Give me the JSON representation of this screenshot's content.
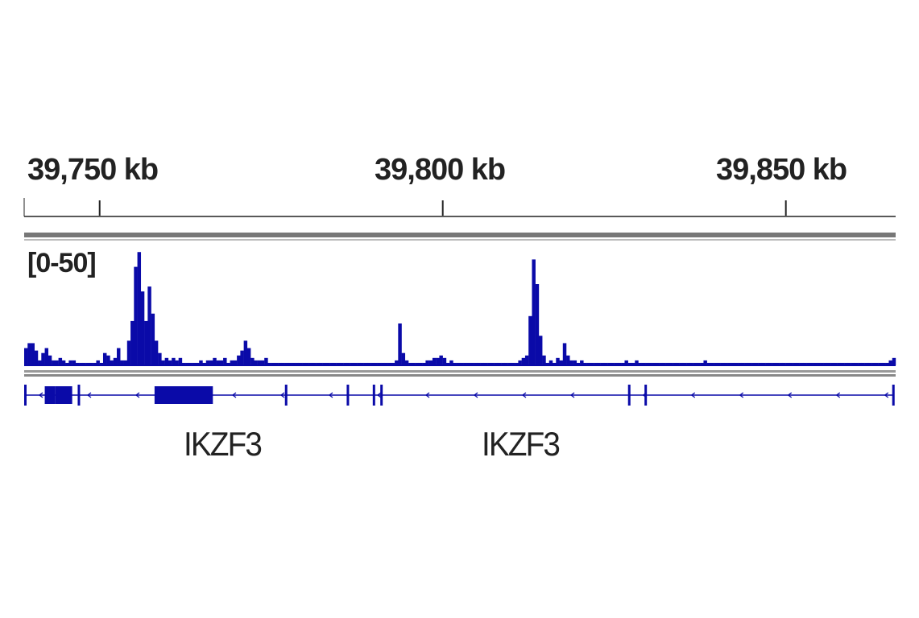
{
  "chart_data": {
    "type": "bar",
    "ruler": {
      "ticks": [
        {
          "position_kb": 39750,
          "label": "39,750 kb"
        },
        {
          "position_kb": 39800,
          "label": "39,800 kb"
        },
        {
          "position_kb": 39850,
          "label": "39,850 kb"
        }
      ],
      "xlim_kb": [
        39739,
        39866
      ]
    },
    "track": {
      "range_label": "[0-50]",
      "ylim": [
        0,
        50
      ],
      "color": "#0a0aa8",
      "bin_kb": 0.5,
      "signal": [
        [
          39739.0,
          7
        ],
        [
          39739.5,
          9
        ],
        [
          39740.0,
          9
        ],
        [
          39740.5,
          6
        ],
        [
          39741.0,
          2
        ],
        [
          39741.5,
          5
        ],
        [
          39742.0,
          7
        ],
        [
          39742.5,
          4
        ],
        [
          39743.0,
          2
        ],
        [
          39743.5,
          2
        ],
        [
          39744.0,
          3
        ],
        [
          39744.5,
          2
        ],
        [
          39745.0,
          1
        ],
        [
          39745.5,
          2
        ],
        [
          39746.0,
          2
        ],
        [
          39746.5,
          1
        ],
        [
          39747.0,
          1
        ],
        [
          39747.5,
          1
        ],
        [
          39748.0,
          1
        ],
        [
          39748.5,
          1
        ],
        [
          39749.0,
          1
        ],
        [
          39749.5,
          2
        ],
        [
          39750.0,
          1
        ],
        [
          39750.5,
          5
        ],
        [
          39751.0,
          4
        ],
        [
          39751.5,
          2
        ],
        [
          39752.0,
          3
        ],
        [
          39752.5,
          7
        ],
        [
          39753.0,
          2
        ],
        [
          39753.5,
          2
        ],
        [
          39754.0,
          10
        ],
        [
          39754.5,
          18
        ],
        [
          39755.0,
          40
        ],
        [
          39755.5,
          46
        ],
        [
          39756.0,
          30
        ],
        [
          39756.5,
          18
        ],
        [
          39757.0,
          32
        ],
        [
          39757.5,
          21
        ],
        [
          39758.0,
          10
        ],
        [
          39758.5,
          5
        ],
        [
          39759.0,
          2
        ],
        [
          39759.5,
          3
        ],
        [
          39760.0,
          2
        ],
        [
          39760.5,
          3
        ],
        [
          39761.0,
          2
        ],
        [
          39761.5,
          3
        ],
        [
          39762.0,
          1
        ],
        [
          39762.5,
          1
        ],
        [
          39763.0,
          1
        ],
        [
          39763.5,
          1
        ],
        [
          39764.0,
          1
        ],
        [
          39764.5,
          2
        ],
        [
          39765.0,
          1
        ],
        [
          39765.5,
          2
        ],
        [
          39766.0,
          2
        ],
        [
          39766.5,
          3
        ],
        [
          39767.0,
          2
        ],
        [
          39767.5,
          2
        ],
        [
          39768.0,
          3
        ],
        [
          39768.5,
          1
        ],
        [
          39769.0,
          2
        ],
        [
          39769.5,
          2
        ],
        [
          39770.0,
          4
        ],
        [
          39770.5,
          6
        ],
        [
          39771.0,
          10
        ],
        [
          39771.5,
          7
        ],
        [
          39772.0,
          3
        ],
        [
          39772.5,
          2
        ],
        [
          39773.0,
          2
        ],
        [
          39773.5,
          2
        ],
        [
          39774.0,
          3
        ],
        [
          39774.5,
          1
        ],
        [
          39775.0,
          1
        ],
        [
          39775.5,
          1
        ],
        [
          39776.0,
          1
        ],
        [
          39776.5,
          1
        ],
        [
          39777.0,
          1
        ],
        [
          39777.5,
          1
        ],
        [
          39778.0,
          1
        ],
        [
          39778.5,
          1
        ],
        [
          39779.0,
          1
        ],
        [
          39779.5,
          1
        ],
        [
          39780.0,
          1
        ],
        [
          39780.5,
          1
        ],
        [
          39781.0,
          1
        ],
        [
          39781.5,
          1
        ],
        [
          39782.0,
          1
        ],
        [
          39782.5,
          1
        ],
        [
          39783.0,
          1
        ],
        [
          39783.5,
          1
        ],
        [
          39784.0,
          1
        ],
        [
          39784.5,
          1
        ],
        [
          39785.0,
          1
        ],
        [
          39785.5,
          1
        ],
        [
          39786.0,
          1
        ],
        [
          39786.5,
          1
        ],
        [
          39787.0,
          1
        ],
        [
          39787.5,
          1
        ],
        [
          39788.0,
          1
        ],
        [
          39788.5,
          1
        ],
        [
          39789.0,
          1
        ],
        [
          39789.5,
          1
        ],
        [
          39790.0,
          1
        ],
        [
          39790.5,
          1
        ],
        [
          39791.0,
          1
        ],
        [
          39791.5,
          1
        ],
        [
          39792.0,
          1
        ],
        [
          39792.5,
          1
        ],
        [
          39793.0,
          2
        ],
        [
          39793.5,
          17
        ],
        [
          39794.0,
          5
        ],
        [
          39794.5,
          2
        ],
        [
          39795.0,
          1
        ],
        [
          39795.5,
          1
        ],
        [
          39796.0,
          1
        ],
        [
          39796.5,
          1
        ],
        [
          39797.0,
          1
        ],
        [
          39797.5,
          2
        ],
        [
          39798.0,
          2
        ],
        [
          39798.5,
          3
        ],
        [
          39799.0,
          3
        ],
        [
          39799.5,
          4
        ],
        [
          39800.0,
          3
        ],
        [
          39800.5,
          1
        ],
        [
          39801.0,
          2
        ],
        [
          39801.5,
          1
        ],
        [
          39802.0,
          1
        ],
        [
          39802.5,
          1
        ],
        [
          39803.0,
          1
        ],
        [
          39803.5,
          1
        ],
        [
          39804.0,
          1
        ],
        [
          39804.5,
          1
        ],
        [
          39805.0,
          1
        ],
        [
          39805.5,
          1
        ],
        [
          39806.0,
          1
        ],
        [
          39806.5,
          1
        ],
        [
          39807.0,
          1
        ],
        [
          39807.5,
          1
        ],
        [
          39808.0,
          1
        ],
        [
          39808.5,
          1
        ],
        [
          39809.0,
          1
        ],
        [
          39809.5,
          1
        ],
        [
          39810.0,
          1
        ],
        [
          39810.5,
          1
        ],
        [
          39811.0,
          2
        ],
        [
          39811.5,
          3
        ],
        [
          39812.0,
          4
        ],
        [
          39812.5,
          20
        ],
        [
          39813.0,
          43
        ],
        [
          39813.5,
          33
        ],
        [
          39814.0,
          12
        ],
        [
          39814.5,
          4
        ],
        [
          39815.0,
          1
        ],
        [
          39815.5,
          2
        ],
        [
          39816.0,
          1
        ],
        [
          39816.5,
          3
        ],
        [
          39817.0,
          2
        ],
        [
          39817.5,
          9
        ],
        [
          39818.0,
          4
        ],
        [
          39818.5,
          2
        ],
        [
          39819.0,
          2
        ],
        [
          39819.5,
          1
        ],
        [
          39820.0,
          2
        ],
        [
          39820.5,
          1
        ],
        [
          39821.0,
          1
        ],
        [
          39821.5,
          1
        ],
        [
          39822.0,
          1
        ],
        [
          39822.5,
          1
        ],
        [
          39823.0,
          1
        ],
        [
          39823.5,
          1
        ],
        [
          39824.0,
          1
        ],
        [
          39824.5,
          1
        ],
        [
          39825.0,
          1
        ],
        [
          39825.5,
          1
        ],
        [
          39826.0,
          1
        ],
        [
          39826.5,
          2
        ],
        [
          39827.0,
          1
        ],
        [
          39827.5,
          1
        ],
        [
          39828.0,
          2
        ],
        [
          39828.5,
          1
        ],
        [
          39829.0,
          1
        ],
        [
          39829.5,
          1
        ],
        [
          39830.0,
          1
        ],
        [
          39830.5,
          1
        ],
        [
          39831.0,
          1
        ],
        [
          39831.5,
          1
        ],
        [
          39832.0,
          1
        ],
        [
          39832.5,
          1
        ],
        [
          39833.0,
          1
        ],
        [
          39833.5,
          1
        ],
        [
          39834.0,
          1
        ],
        [
          39834.5,
          1
        ],
        [
          39835.0,
          1
        ],
        [
          39835.5,
          1
        ],
        [
          39836.0,
          1
        ],
        [
          39836.5,
          1
        ],
        [
          39837.0,
          1
        ],
        [
          39837.5,
          1
        ],
        [
          39838.0,
          2
        ],
        [
          39838.5,
          1
        ],
        [
          39839.0,
          1
        ],
        [
          39839.5,
          1
        ],
        [
          39840.0,
          1
        ],
        [
          39840.5,
          1
        ],
        [
          39841.0,
          1
        ],
        [
          39841.5,
          1
        ],
        [
          39842.0,
          1
        ],
        [
          39842.5,
          1
        ],
        [
          39843.0,
          1
        ],
        [
          39843.5,
          1
        ],
        [
          39844.0,
          1
        ],
        [
          39844.5,
          1
        ],
        [
          39845.0,
          1
        ],
        [
          39845.5,
          1
        ],
        [
          39846.0,
          1
        ],
        [
          39846.5,
          1
        ],
        [
          39847.0,
          1
        ],
        [
          39847.5,
          1
        ],
        [
          39848.0,
          1
        ],
        [
          39848.5,
          1
        ],
        [
          39849.0,
          1
        ],
        [
          39849.5,
          1
        ],
        [
          39850.0,
          1
        ],
        [
          39850.5,
          1
        ],
        [
          39851.0,
          1
        ],
        [
          39851.5,
          1
        ],
        [
          39852.0,
          1
        ],
        [
          39852.5,
          1
        ],
        [
          39853.0,
          1
        ],
        [
          39853.5,
          1
        ],
        [
          39854.0,
          1
        ],
        [
          39854.5,
          1
        ],
        [
          39855.0,
          1
        ],
        [
          39855.5,
          1
        ],
        [
          39856.0,
          1
        ],
        [
          39856.5,
          1
        ],
        [
          39857.0,
          1
        ],
        [
          39857.5,
          1
        ],
        [
          39858.0,
          1
        ],
        [
          39858.5,
          1
        ],
        [
          39859.0,
          1
        ],
        [
          39859.5,
          1
        ],
        [
          39860.0,
          1
        ],
        [
          39860.5,
          1
        ],
        [
          39861.0,
          1
        ],
        [
          39861.5,
          1
        ],
        [
          39862.0,
          1
        ],
        [
          39862.5,
          1
        ],
        [
          39863.0,
          1
        ],
        [
          39863.5,
          1
        ],
        [
          39864.0,
          1
        ],
        [
          39864.5,
          1
        ],
        [
          39865.0,
          2
        ],
        [
          39865.5,
          3
        ]
      ]
    },
    "genes": [
      {
        "label": "IKZF3",
        "strand": "-",
        "start_kb": 39739.0,
        "end_kb": 39827.0,
        "exons": [
          {
            "start_kb": 39739.0,
            "end_kb": 39739.3
          },
          {
            "start_kb": 39742.0,
            "end_kb": 39743.5
          },
          {
            "start_kb": 39743.5,
            "end_kb": 39746.0
          },
          {
            "start_kb": 39746.8,
            "end_kb": 39747.1
          },
          {
            "start_kb": 39758.0,
            "end_kb": 39766.5
          },
          {
            "start_kb": 39777.0,
            "end_kb": 39777.3
          },
          {
            "start_kb": 39786.0,
            "end_kb": 39786.3
          },
          {
            "start_kb": 39789.8,
            "end_kb": 39790.1
          },
          {
            "start_kb": 39790.9,
            "end_kb": 39791.2
          },
          {
            "start_kb": 39827.0,
            "end_kb": 39827.3
          }
        ]
      },
      {
        "label": "IKZF3",
        "strand": "-",
        "start_kb": 39827.0,
        "end_kb": 39865.8,
        "exons": [
          {
            "start_kb": 39829.4,
            "end_kb": 39829.7
          },
          {
            "start_kb": 39865.5,
            "end_kb": 39865.8
          }
        ]
      }
    ]
  }
}
